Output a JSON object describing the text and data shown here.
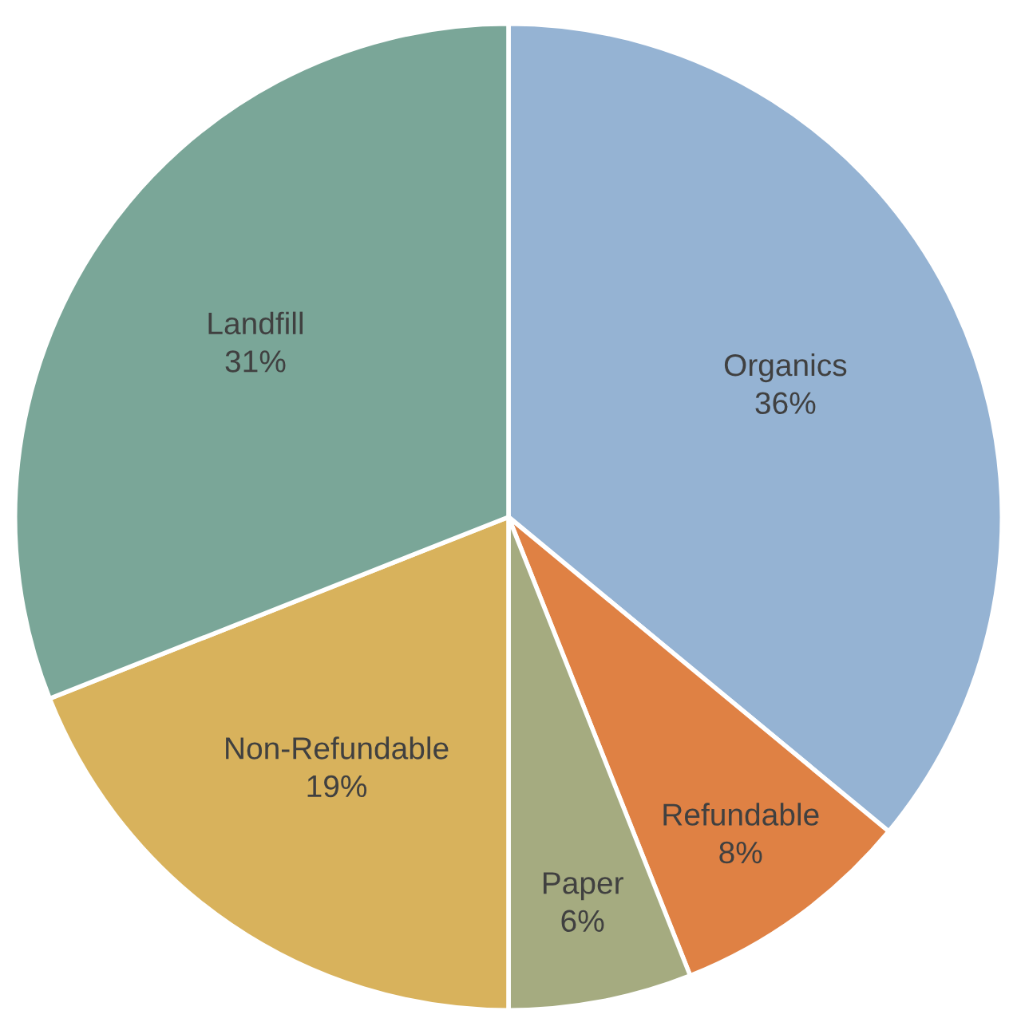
{
  "chart_data": {
    "type": "pie",
    "categories": [
      "Organics",
      "Refundable",
      "Paper",
      "Non-Refundable",
      "Landfill"
    ],
    "values": [
      36,
      8,
      6,
      19,
      31
    ],
    "value_labels": [
      "36%",
      "8%",
      "6%",
      "19%",
      "31%"
    ],
    "colors": [
      "#95b3d3",
      "#df8144",
      "#a5ab80",
      "#d8b25c",
      "#7aa698"
    ]
  }
}
